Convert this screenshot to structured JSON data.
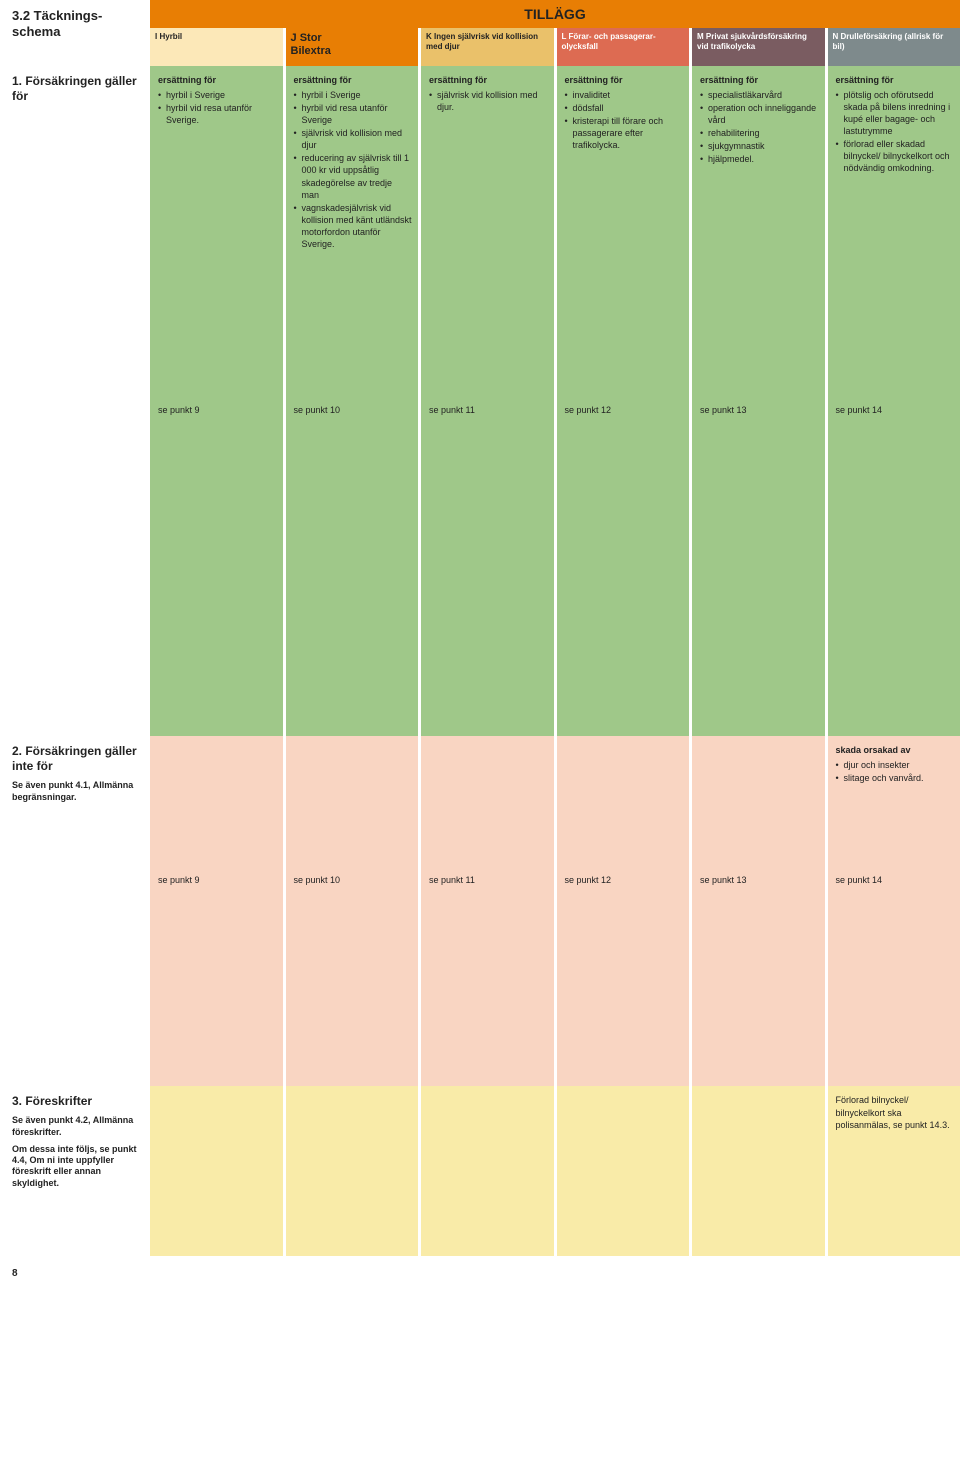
{
  "section_number": "3.2 Täcknings­schema",
  "tillagg_label": "TILLÄGG",
  "headers": {
    "i": {
      "letter": "I",
      "title": "Hyrbil"
    },
    "j": {
      "letter": "J",
      "title": "Stor",
      "sub": "Bilextra"
    },
    "k": {
      "letter": "K",
      "title": "Ingen självrisk vid kollision med djur"
    },
    "l": {
      "letter": "L",
      "title": "Förar- och passagerar­olycksfall"
    },
    "m": {
      "letter": "M",
      "title": "Privat sjukvårds­försäkring vid trafikolycka"
    },
    "n": {
      "letter": "N",
      "title": "Drulleför­säkring (all­risk för bil)"
    }
  },
  "row1": {
    "label": "1. Försäkringen gäller för",
    "ers": "ersättning för",
    "i": [
      "hyrbil i Sverige",
      "hyrbil vid resa utanför Sverige."
    ],
    "j": [
      "hyrbil i Sverige",
      "hyrbil vid resa utanför Sverige",
      "självrisk vid kolli­sion med djur",
      "reducering av självrisk till 1 000 kr vid upp­såtlig skadegö­relse av tredje man",
      "vagnskade­självrisk vid kollision med känt utländskt motorfordon utanför Sverige."
    ],
    "k": [
      "självrisk vid kollision med djur."
    ],
    "l": [
      "invaliditet",
      "dödsfall",
      "kristerapi till förare och passagerare efter trafikolycka."
    ],
    "m": [
      "specialist­läkarvård",
      "operation och inneliggande vård",
      "rehabilitering",
      "sjukgymnastik",
      "hjälpmedel."
    ],
    "n": [
      "plötslig och oförutsedd skada på bilens inredning i kupé eller bagage- och lastutrymme",
      "förlorad eller skadad bilnyckel/ bilnyckelkort och nödvändig omkodning."
    ]
  },
  "refs1": {
    "i": "se punkt 9",
    "j": "se punkt 10",
    "k": "se punkt 11",
    "l": "se punkt 12",
    "m": "se punkt 13",
    "n": "se punkt 14"
  },
  "row2": {
    "label": "2. Försäkringen gäller inte för",
    "sub": "Se även punkt 4.1, Allmänna begränsningar.",
    "n_head": "skada orsakad av",
    "n": [
      "djur och insekter",
      "slitage och van­vård."
    ]
  },
  "refs2": {
    "i": "se punkt 9",
    "j": "se punkt 10",
    "k": "se punkt 11",
    "l": "se punkt 12",
    "m": "se punkt 13",
    "n": "se punkt 14"
  },
  "row3": {
    "label": "3. Föreskrifter",
    "sub": "Se även punkt 4.2, Allmänna föreskrifter.",
    "sub2": "Om dessa inte följs, se punkt 4.4, Om ni inte uppfyller föreskrift eller annan skyldighet.",
    "n": "Förlorad bilnyckel/ bilnyckelkort ska polisanmälas, se punkt 14.3."
  },
  "page_number": "8",
  "colors": {
    "orange": "#E87E04",
    "h_i": "#FCE8B8",
    "h_k": "#EAC16A",
    "h_l": "#DD6B52",
    "h_m": "#7A5C61",
    "h_n": "#7E8A8C",
    "green": "#9FC889",
    "pink": "#F9D5C2",
    "yellow": "#F9EBA8"
  }
}
